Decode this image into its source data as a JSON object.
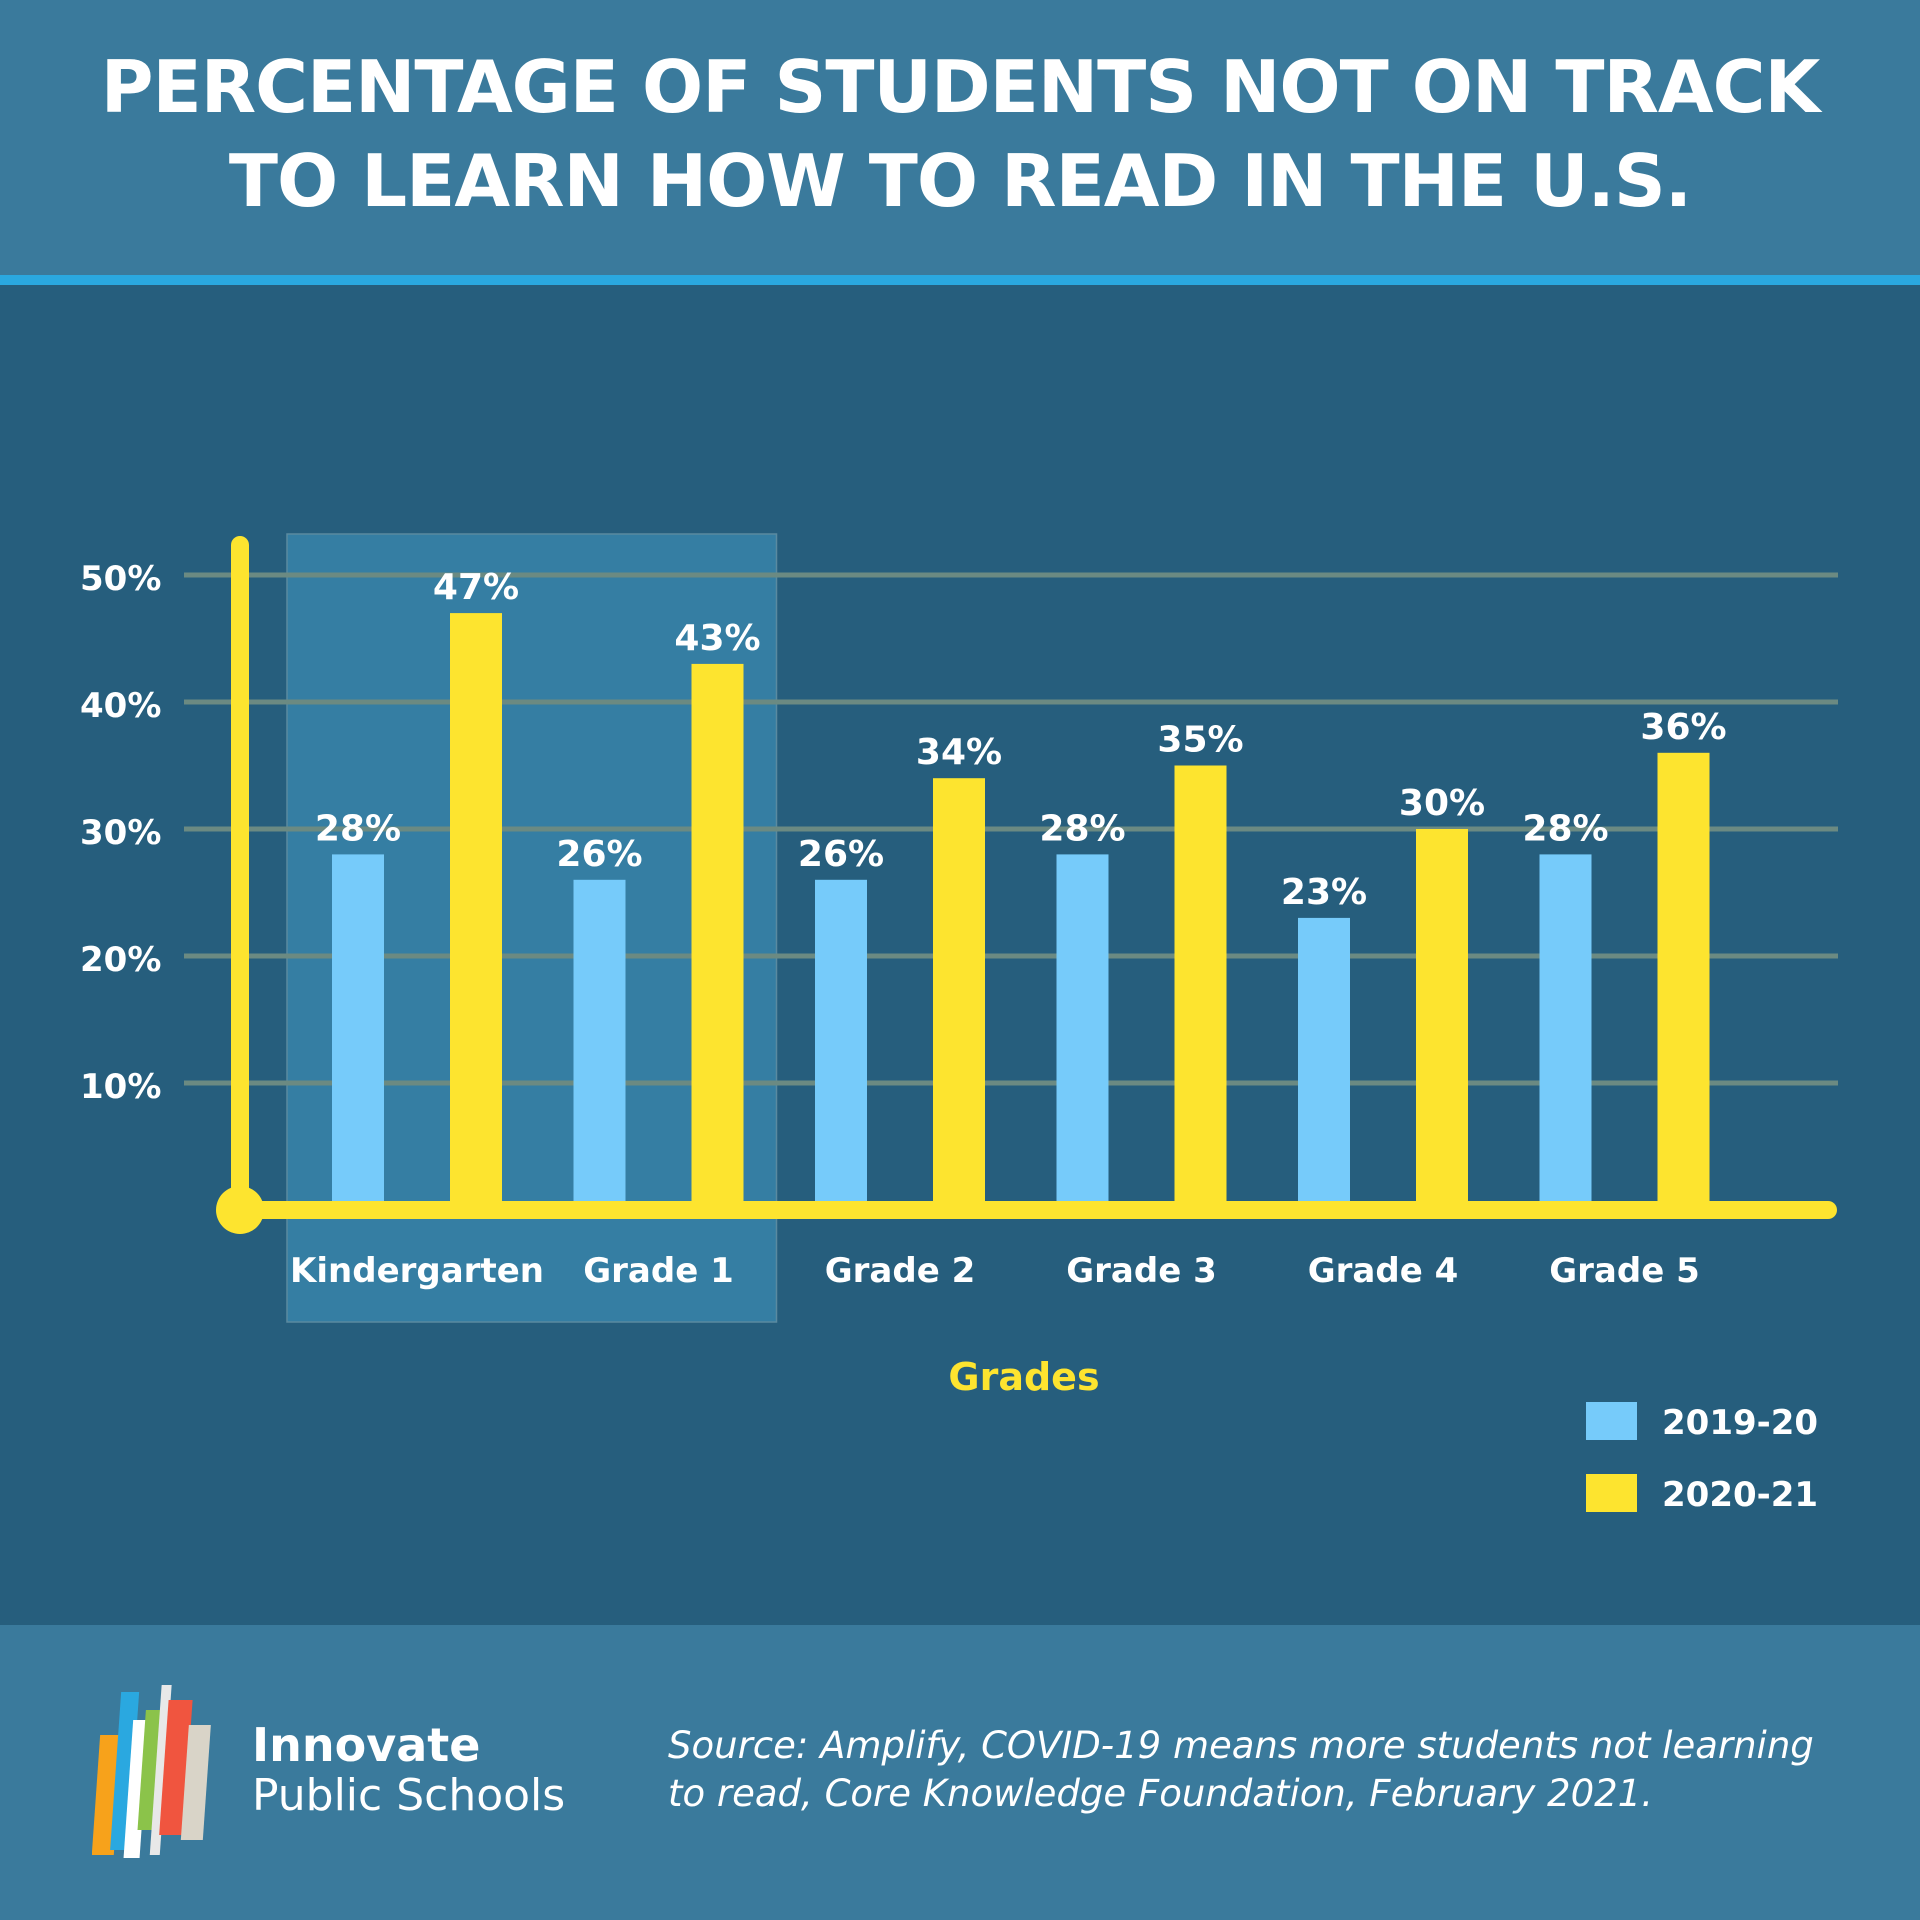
{
  "header": {
    "title_line1": "PERCENTAGE OF STUDENTS NOT ON TRACK",
    "title_line2": "TO LEARN HOW TO READ IN THE U.S."
  },
  "chart_data": {
    "type": "bar",
    "categories": [
      "Kindergarten",
      "Grade 1",
      "Grade 2",
      "Grade 3",
      "Grade 4",
      "Grade 5"
    ],
    "series": [
      {
        "name": "2019-20",
        "values": [
          28,
          26,
          26,
          28,
          23,
          28
        ],
        "labels": [
          "28%",
          "26%",
          "26%",
          "28%",
          "23%",
          "28%"
        ],
        "color": "#76cbfa"
      },
      {
        "name": "2020-21",
        "values": [
          47,
          43,
          34,
          35,
          30,
          36
        ],
        "labels": [
          "47%",
          "43%",
          "34%",
          "35%",
          "30%",
          "36%"
        ],
        "color": "#fde42f"
      }
    ],
    "xlabel": "Grades",
    "ylabel": "",
    "ylim": [
      0,
      50
    ],
    "yticks": [
      10,
      20,
      30,
      40,
      50
    ],
    "ytick_labels": [
      "10%",
      "20%",
      "30%",
      "40%",
      "50%"
    ],
    "highlighted_categories": [
      "Kindergarten",
      "Grade 1"
    ],
    "grid": true,
    "legend_position": "bottom-right"
  },
  "colors": {
    "background": "#265e7d",
    "header": "#3a7a9c",
    "accent_line": "#2aa8e0",
    "axis": "#fde42f",
    "highlight": "#357ea3",
    "gridline": "#6b8a82"
  },
  "footer": {
    "brand_line1": "Innovate",
    "brand_line2": "Public Schools",
    "source_line1": "Source: Amplify, COVID-19 means more students not learning",
    "source_line2": "to read, Core Knowledge Foundation, February 2021."
  }
}
